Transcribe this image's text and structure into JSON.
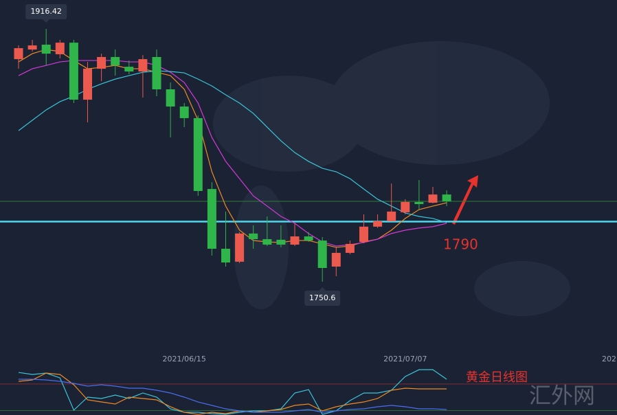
{
  "chart_data": [
    {
      "type": "candlestick",
      "categories": [
        null,
        null,
        null,
        null,
        null,
        null,
        null,
        null,
        null,
        null,
        null,
        null,
        "2021/06/15",
        null,
        null,
        null,
        null,
        null,
        null,
        null,
        null,
        null,
        null,
        null,
        null,
        null,
        null,
        null,
        "2021/07/07",
        null,
        null,
        null
      ],
      "open": [
        1896.6,
        1902.9,
        1906.1,
        1899.8,
        1907.4,
        1870.0,
        1890.3,
        1898.0,
        1891.6,
        1888.5,
        1898.0,
        1876.8,
        1865.5,
        1857.9,
        1811.4,
        1772.2,
        1763.7,
        1782.2,
        1778.5,
        1778.1,
        1774.9,
        1780.3,
        1777.6,
        1760.5,
        1769.5,
        1776.7,
        1786.7,
        1790.3,
        1796.1,
        1802.9,
        1802.4,
        1807.8
      ],
      "close": [
        1903.8,
        1905.6,
        1900.2,
        1907.4,
        1870.0,
        1890.3,
        1898.0,
        1892.5,
        1888.5,
        1896.6,
        1876.8,
        1865.5,
        1857.9,
        1810.1,
        1772.2,
        1763.2,
        1782.2,
        1778.5,
        1774.9,
        1774.9,
        1780.3,
        1777.6,
        1759.6,
        1769.5,
        1775.4,
        1786.7,
        1790.3,
        1796.6,
        1802.9,
        1801.5,
        1807.8,
        1803.3
      ],
      "high": [
        1905.6,
        1909.2,
        1916.42,
        1909.2,
        1909.2,
        1894.8,
        1900.2,
        1902.9,
        1895.7,
        1899.3,
        1902.9,
        1881.3,
        1867.8,
        1859.7,
        1815.9,
        1796.6,
        1783.1,
        1787.6,
        1793.4,
        1787.6,
        1788.9,
        1783.1,
        1779.9,
        1773.1,
        1777.6,
        1794.8,
        1794.8,
        1815.0,
        1804.7,
        1817.3,
        1812.8,
        1810.5
      ],
      "low": [
        1890.3,
        1901.6,
        1892.5,
        1897.1,
        1867.8,
        1855.1,
        1882.2,
        1885.8,
        1886.7,
        1871.4,
        1872.3,
        1845.2,
        1852.0,
        1806.9,
        1767.7,
        1760.5,
        1762.8,
        1772.2,
        1774.0,
        1773.1,
        1774.0,
        1776.7,
        1750.6,
        1754.2,
        1768.6,
        1775.8,
        1785.8,
        1790.3,
        1794.8,
        1797.9,
        1802.0,
        1800.2
      ],
      "up_color": "#ec5a4f",
      "down_color": "#2fb54a",
      "series": [
        {
          "color": "#f08a24",
          "values": [
            1894.8,
            1900.2,
            1902.9,
            1901.6,
            1895.7,
            1890.3,
            1891.2,
            1892.5,
            1890.3,
            1890.3,
            1888.0,
            1885.8,
            1876.8,
            1856.5,
            1822.7,
            1800.2,
            1784.4,
            1777.6,
            1776.7,
            1776.3,
            1777.6,
            1777.6,
            1775.4,
            1773.1,
            1774.0,
            1776.7,
            1778.5,
            1784.4,
            1792.1,
            1797.9,
            1800.2,
            1802.4
          ]
        },
        {
          "color": "#d43ad8",
          "values": [
            1885.8,
            1890.3,
            1892.5,
            1894.8,
            1895.7,
            1895.7,
            1895.7,
            1895.7,
            1894.8,
            1894.8,
            1892.5,
            1888.0,
            1881.3,
            1867.8,
            1845.2,
            1829.5,
            1818.2,
            1806.9,
            1800.2,
            1793.4,
            1788.9,
            1782.2,
            1776.7,
            1774.0,
            1774.9,
            1776.3,
            1778.5,
            1782.2,
            1784.4,
            1785.8,
            1786.7,
            1788.9
          ]
        },
        {
          "color": "#3cc4d8",
          "values": [
            1849.7,
            1856.5,
            1863.3,
            1868.7,
            1872.3,
            1876.8,
            1880.4,
            1883.5,
            1885.8,
            1888.0,
            1888.9,
            1888.5,
            1887.6,
            1883.5,
            1879.0,
            1873.2,
            1867.8,
            1861.0,
            1852.0,
            1843.0,
            1835.3,
            1829.5,
            1825.0,
            1822.7,
            1818.2,
            1811.4,
            1804.7,
            1800.2,
            1795.7,
            1793.4,
            1792.1,
            1789.4
          ]
        }
      ],
      "levels": [
        {
          "value": 1790,
          "color": "#4fd8ec"
        },
        {
          "value": 1803.3,
          "color": "#2f7d3a"
        }
      ],
      "ylim": [
        1701,
        1935.4
      ],
      "annotations": [
        "黄金日线图",
        "202"
      ],
      "watermark": "汇外网"
    },
    {
      "type": "line",
      "series": [
        {
          "color": "#3cc4d8",
          "values": [
            106.0,
            101.4,
            104.5,
            93.7,
            20.8,
            50.3,
            47.2,
            54.9,
            47.2,
            59.6,
            50.3,
            23.9,
            16.2,
            16.2,
            13.1,
            11.5,
            16.2,
            19.3,
            19.3,
            23.9,
            59.6,
            67.3,
            11.5,
            19.3,
            42.5,
            59.6,
            59.6,
            65.8,
            96.8,
            112.2,
            112.2,
            90.6
          ]
        },
        {
          "color": "#f08a24",
          "values": [
            85.9,
            89.0,
            104.5,
            101.4,
            78.2,
            44.1,
            39.4,
            34.8,
            50.3,
            47.2,
            44.1,
            28.6,
            16.2,
            11.5,
            16.2,
            13.1,
            19.3,
            16.2,
            19.3,
            22.4,
            31.7,
            34.8,
            19.3,
            28.6,
            34.8,
            39.4,
            47.2,
            65.8,
            70.4,
            68.9,
            68.9,
            68.9
          ]
        },
        {
          "color": "#4a6ef0",
          "values": [
            90.6,
            90.6,
            89.0,
            85.9,
            81.3,
            75.1,
            78.2,
            75.1,
            70.4,
            70.4,
            65.8,
            59.6,
            50.3,
            39.4,
            31.7,
            23.9,
            19.3,
            16.2,
            16.2,
            16.2,
            19.3,
            22.4,
            16.2,
            19.3,
            22.4,
            23.9,
            28.6,
            31.7,
            28.6,
            23.9,
            23.9,
            22.4
          ]
        }
      ],
      "levels": [
        {
          "value": 80,
          "color": "#7a2d30"
        },
        {
          "value": 20,
          "color": "#2f6b38"
        }
      ],
      "ylim": [
        10,
        120
      ]
    }
  ]
}
